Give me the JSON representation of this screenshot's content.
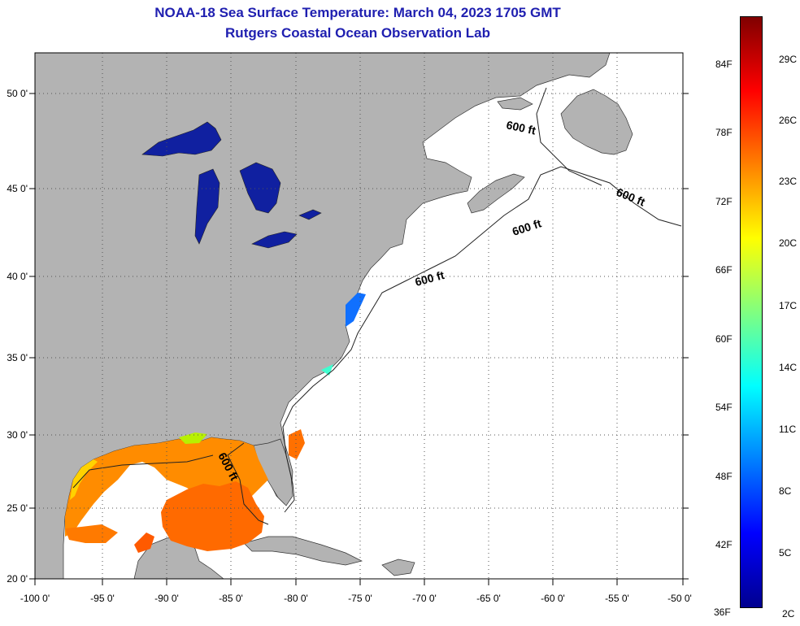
{
  "header": {
    "title": "NOAA-18 Sea Surface Temperature:  March 04, 2023 1705 GMT",
    "subtitle": "Rutgers Coastal Ocean Observation Lab"
  },
  "map": {
    "lon_range": [
      -100,
      -50
    ],
    "lat_range": [
      20,
      52.5
    ],
    "lon_ticks": [
      "-100 0'",
      "-95 0'",
      "-90 0'",
      "-85 0'",
      "-80 0'",
      "-75 0'",
      "-70 0'",
      "-65 0'",
      "-60 0'",
      "-55 0'",
      "-50 0'"
    ],
    "lat_ticks": [
      "50 0'",
      "45 0'",
      "40 0'",
      "35 0'",
      "30 0'",
      "25 0'",
      "20 0'"
    ],
    "contour_label": "600 ft",
    "colors": {
      "land": "#b3b3b3",
      "ocean_no_data": "#ffffff",
      "lakes": "#1020a0",
      "grid": "#555555"
    }
  },
  "colorbar": {
    "fahrenheit_labels": [
      "84F",
      "78F",
      "72F",
      "66F",
      "60F",
      "54F",
      "48F",
      "42F",
      "36F"
    ],
    "celsius_labels": [
      "29C",
      "26C",
      "23C",
      "20C",
      "17C",
      "14C",
      "11C",
      "8C",
      "5C",
      "2C"
    ],
    "range_f": [
      36,
      88
    ],
    "stops": [
      "#00008f",
      "#0000ff",
      "#0080ff",
      "#00ffff",
      "#80ff80",
      "#ffff00",
      "#ff8000",
      "#ff0000",
      "#800000"
    ]
  }
}
